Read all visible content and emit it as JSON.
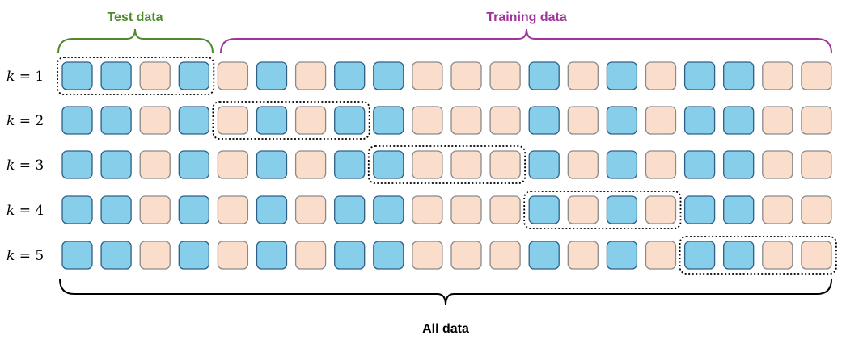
{
  "labels": {
    "test": "Test data",
    "training": "Training data",
    "all": "All data"
  },
  "colors": {
    "blue_fill": "#87CEEB",
    "blue_stroke": "#2E5F86",
    "peach_fill": "#FBDDCC",
    "peach_stroke": "#8A8A8A",
    "test_color": "#4E8A2B",
    "training_color": "#A0349A",
    "all_color": "#000000"
  },
  "folds": [
    {
      "var": "k",
      "op": "=",
      "value": "1",
      "test_fold": 1
    },
    {
      "var": "k",
      "op": "=",
      "value": "2",
      "test_fold": 2
    },
    {
      "var": "k",
      "op": "=",
      "value": "3",
      "test_fold": 3
    },
    {
      "var": "k",
      "op": "=",
      "value": "4",
      "test_fold": 4
    },
    {
      "var": "k",
      "op": "=",
      "value": "5",
      "test_fold": 5
    }
  ],
  "samples": [
    "blue",
    "blue",
    "peach",
    "blue",
    "peach",
    "blue",
    "peach",
    "blue",
    "blue",
    "peach",
    "peach",
    "peach",
    "blue",
    "peach",
    "blue",
    "peach",
    "blue",
    "blue",
    "peach",
    "peach"
  ],
  "fold_size": 4
}
